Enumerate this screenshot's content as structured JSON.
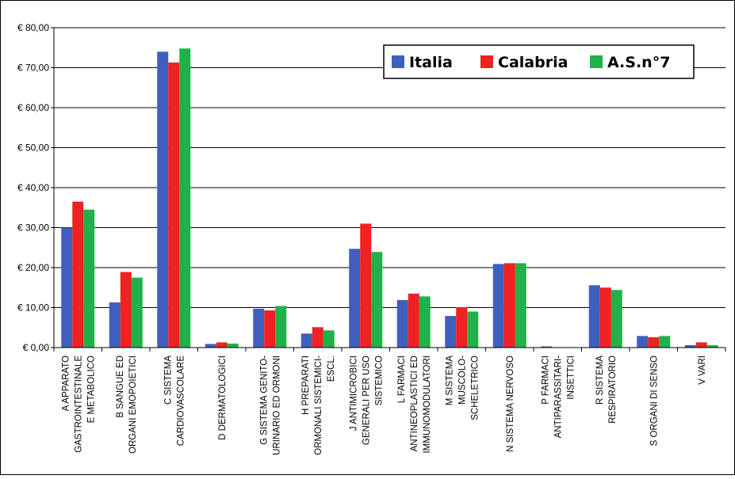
{
  "chart_data": {
    "type": "bar",
    "title": "",
    "xlabel": "",
    "ylabel": "",
    "ylim": [
      0,
      80
    ],
    "y_ticks": [
      "€ 0,00",
      "€ 10,00",
      "€ 20,00",
      "€ 30,00",
      "€ 40,00",
      "€ 50,00",
      "€ 60,00",
      "€ 70,00",
      "€ 80,00"
    ],
    "y_tick_values": [
      0,
      10,
      20,
      30,
      40,
      50,
      60,
      70,
      80
    ],
    "grid": true,
    "legend_position": "top-right",
    "categories": [
      [
        "A  APPARATO",
        "GASTROINTESTINALE",
        "E METABOLICO"
      ],
      [
        "B  SANGUE ED",
        "ORGANI EMOPOIETICI"
      ],
      [
        "C  SISTEMA",
        "CARDIOVASCOLARE"
      ],
      [
        "D  DERMATOLOGICI"
      ],
      [
        "G  SISTEMA GENITO-",
        "URINARIO ED ORMONI"
      ],
      [
        "H  PREPARATI",
        "ORMONALI SISTEMICI-",
        "ESCL."
      ],
      [
        "J  ANTIMICROBICI",
        "GENERALI PER USO",
        "SISTEMICO"
      ],
      [
        "L  FARMACI",
        "ANTINEOPLASTICI ED",
        "IMMUNOMODULATORI"
      ],
      [
        "M  SISTEMA",
        "MUSCOLO-",
        "SCHELETRICO"
      ],
      [
        "N  SISTEMA NERVOSO"
      ],
      [
        "P  FARMACI",
        "ANTIPARASSITARI-",
        "INSETTICI"
      ],
      [
        "R  SISTEMA",
        "RESPIRATORIO"
      ],
      [
        "S  ORGANI DI SENSO"
      ],
      [
        "V  VARI"
      ]
    ],
    "series": [
      {
        "name": "Italia",
        "color": "#3f5fbf",
        "values": [
          30.0,
          11.3,
          74.0,
          0.9,
          9.7,
          3.5,
          24.7,
          11.9,
          7.9,
          20.9,
          0.3,
          15.6,
          2.9,
          0.6
        ]
      },
      {
        "name": "Calabria",
        "color": "#ee2222",
        "values": [
          36.5,
          18.9,
          71.3,
          1.3,
          9.3,
          5.1,
          31.0,
          13.5,
          10.1,
          21.1,
          0.0,
          15.0,
          2.6,
          1.3
        ]
      },
      {
        "name": "A.S.n°7",
        "color": "#22b04b",
        "values": [
          34.5,
          17.5,
          74.8,
          1.0,
          10.4,
          4.3,
          23.9,
          12.8,
          9.0,
          21.1,
          0.0,
          14.4,
          2.9,
          0.6
        ]
      }
    ]
  }
}
